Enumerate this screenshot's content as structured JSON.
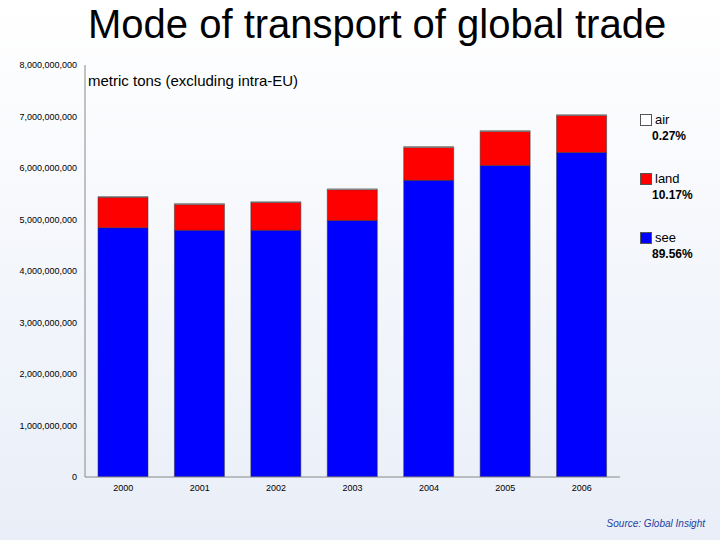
{
  "chart_data": {
    "type": "bar",
    "title": "Mode of transport of global trade",
    "subtitle": "metric tons (excluding intra-EU)",
    "annotations": [
      "Source: Global Insight"
    ],
    "categories": [
      "2000",
      "2001",
      "2002",
      "2003",
      "2004",
      "2005",
      "2006"
    ],
    "stacked": true,
    "grid": false,
    "legend": "right",
    "series": [
      {
        "name": "see",
        "color": "#0000ff",
        "share": {
          "value": 89.56,
          "label": "89.56%"
        },
        "values": [
          4840000000,
          4790000000,
          4790000000,
          4980000000,
          5760000000,
          6050000000,
          6300000000
        ]
      },
      {
        "name": "land",
        "color": "#ff0000",
        "share": {
          "value": 10.17,
          "label": "10.17%"
        },
        "values": [
          590000000,
          500000000,
          540000000,
          600000000,
          640000000,
          660000000,
          720000000
        ]
      },
      {
        "name": "air",
        "color": "#ffffff",
        "share": {
          "value": 0.27,
          "label": "0.27%"
        },
        "values": [
          15000000,
          20000000,
          15000000,
          15000000,
          15000000,
          15000000,
          15000000
        ]
      }
    ],
    "ylim": [
      0,
      8000000000
    ],
    "yticks": [
      {
        "value": 0,
        "label": "0"
      },
      {
        "value": 1000000000,
        "label": "1,000,000,000"
      },
      {
        "value": 2000000000,
        "label": "2,000,000,000"
      },
      {
        "value": 3000000000,
        "label": "3,000,000,000"
      },
      {
        "value": 4000000000,
        "label": "4,000,000,000"
      },
      {
        "value": 5000000000,
        "label": "5,000,000,000"
      },
      {
        "value": 6000000000,
        "label": "6,000,000,000"
      },
      {
        "value": 7000000000,
        "label": "7,000,000,000"
      },
      {
        "value": 8000000000,
        "label": "8,000,000,000"
      }
    ]
  }
}
